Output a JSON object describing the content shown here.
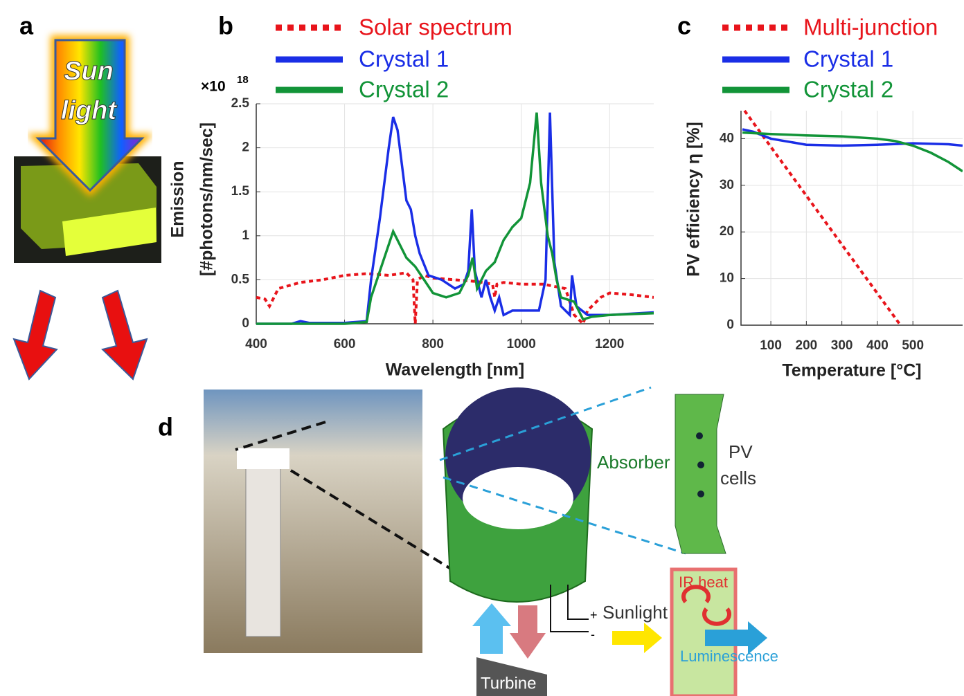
{
  "panels": {
    "a": "a",
    "b": "b",
    "c": "c",
    "d": "d"
  },
  "panel_a": {
    "arrow_text_1": "Sun",
    "arrow_text_2": "light"
  },
  "chart_data": [
    {
      "type": "line",
      "xlabel": "Wavelength [nm]",
      "ylabel_1": "Emission",
      "ylabel_2": "[#photons/nm/sec]",
      "multiplier": {
        "base": "×10",
        "exponent": "18"
      },
      "xlim": [
        400,
        1300
      ],
      "ylim": [
        0,
        2.5
      ],
      "xticks": [
        400,
        600,
        800,
        1000,
        1200
      ],
      "yticks": [
        0,
        0.5,
        1,
        1.5,
        2,
        2.5
      ],
      "grid": true,
      "series": [
        {
          "name": "Solar spectrum",
          "color": "#e8141b",
          "style": "dotted",
          "x": [
            400,
            420,
            430,
            450,
            500,
            550,
            600,
            650,
            700,
            740,
            755,
            760,
            765,
            780,
            800,
            850,
            900,
            935,
            940,
            945,
            960,
            1000,
            1050,
            1100,
            1120,
            1140,
            1150,
            1180,
            1200,
            1250,
            1300
          ],
          "values": [
            0.3,
            0.28,
            0.2,
            0.4,
            0.47,
            0.5,
            0.55,
            0.57,
            0.55,
            0.58,
            0.5,
            0.0,
            0.5,
            0.55,
            0.52,
            0.5,
            0.48,
            0.45,
            0.3,
            0.45,
            0.47,
            0.45,
            0.45,
            0.4,
            0.1,
            0.0,
            0.15,
            0.3,
            0.35,
            0.33,
            0.3
          ]
        },
        {
          "name": "Crystal 1",
          "color": "#1a2ee6",
          "style": "solid",
          "x": [
            400,
            480,
            500,
            520,
            600,
            650,
            660,
            680,
            700,
            710,
            720,
            740,
            750,
            760,
            770,
            790,
            820,
            850,
            870,
            880,
            888,
            895,
            910,
            920,
            930,
            940,
            950,
            960,
            980,
            1000,
            1040,
            1055,
            1065,
            1075,
            1090,
            1110,
            1115,
            1125,
            1150,
            1200,
            1300
          ],
          "values": [
            0,
            0,
            0.03,
            0.01,
            0.01,
            0.03,
            0.5,
            1.2,
            2.0,
            2.35,
            2.2,
            1.4,
            1.3,
            1.0,
            0.8,
            0.55,
            0.5,
            0.4,
            0.45,
            0.6,
            1.3,
            0.6,
            0.3,
            0.5,
            0.3,
            0.15,
            0.3,
            0.1,
            0.15,
            0.15,
            0.15,
            0.5,
            2.4,
            0.7,
            0.2,
            0.1,
            0.55,
            0.2,
            0.1,
            0.1,
            0.13
          ]
        },
        {
          "name": "Crystal 2",
          "color": "#129438",
          "style": "solid",
          "x": [
            400,
            600,
            650,
            660,
            680,
            700,
            710,
            720,
            740,
            760,
            780,
            800,
            830,
            860,
            880,
            890,
            900,
            920,
            940,
            960,
            980,
            1000,
            1020,
            1035,
            1045,
            1060,
            1070,
            1080,
            1090,
            1120,
            1140,
            1160,
            1200,
            1300
          ],
          "values": [
            0,
            0,
            0.02,
            0.3,
            0.6,
            0.9,
            1.05,
            0.95,
            0.75,
            0.65,
            0.5,
            0.35,
            0.3,
            0.35,
            0.55,
            0.75,
            0.4,
            0.6,
            0.7,
            0.95,
            1.1,
            1.2,
            1.6,
            2.4,
            1.6,
            1.0,
            0.8,
            0.5,
            0.3,
            0.25,
            0.05,
            0.08,
            0.1,
            0.12
          ]
        }
      ]
    },
    {
      "type": "line",
      "xlabel": "Temperature [°C]",
      "ylabel_1": "PV efficiency η [%]",
      "xlim": [
        16,
        640
      ],
      "ylim": [
        0,
        46
      ],
      "xticks": [
        100,
        200,
        300,
        400,
        500
      ],
      "yticks": [
        0,
        10,
        20,
        30,
        40
      ],
      "grid": true,
      "series": [
        {
          "name": "Multi-junction",
          "color": "#e8141b",
          "style": "dotted",
          "x": [
            26,
            465
          ],
          "values": [
            46,
            0
          ]
        },
        {
          "name": "Crystal 1",
          "color": "#1a2ee6",
          "style": "solid",
          "x": [
            20,
            50,
            100,
            200,
            300,
            400,
            500,
            600,
            640
          ],
          "values": [
            42,
            41.5,
            40,
            38.7,
            38.5,
            38.7,
            39,
            38.8,
            38.5
          ]
        },
        {
          "name": "Crystal 2",
          "color": "#129438",
          "style": "solid",
          "x": [
            20,
            100,
            200,
            300,
            400,
            450,
            500,
            550,
            600,
            640
          ],
          "values": [
            41.3,
            41,
            40.7,
            40.5,
            40,
            39.5,
            38.5,
            37,
            35,
            33
          ]
        }
      ]
    }
  ],
  "panel_d": {
    "absorber": "Absorber",
    "pv": "PV",
    "cells": "cells",
    "plus": "+",
    "minus": "-",
    "sunlight": "Sunlight",
    "ir_heat": "IR heat",
    "luminescence": "Luminescence",
    "turbine": "Turbine"
  }
}
